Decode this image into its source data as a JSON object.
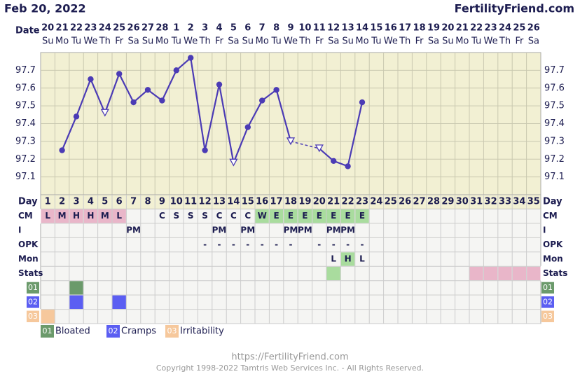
{
  "header": {
    "date": "Feb 20, 2022",
    "site": "FertilityFriend.com"
  },
  "chart_data": {
    "type": "line",
    "x_label": "Date",
    "dates": [
      20,
      21,
      22,
      23,
      24,
      25,
      26,
      27,
      28,
      1,
      2,
      3,
      4,
      5,
      6,
      7,
      8,
      9,
      10,
      11,
      12,
      13,
      14,
      15,
      16,
      17,
      18,
      19,
      20,
      21,
      22,
      23,
      24,
      25,
      26
    ],
    "weekdays": [
      "Su",
      "Mo",
      "Tu",
      "We",
      "Th",
      "Fr",
      "Sa",
      "Su",
      "Mo",
      "Tu",
      "We",
      "Th",
      "Fr",
      "Sa",
      "Su",
      "Mo",
      "Tu",
      "We",
      "Th",
      "Fr",
      "Sa",
      "Su",
      "Mo",
      "Tu",
      "We",
      "Th",
      "Fr",
      "Sa",
      "Su",
      "Mo",
      "Tu",
      "We",
      "Th",
      "Fr",
      "Sa"
    ],
    "ylim": [
      97.0,
      97.8
    ],
    "yticks": [
      97.1,
      97.2,
      97.3,
      97.4,
      97.5,
      97.6,
      97.7
    ],
    "grid": true,
    "color": "#4b3bb5",
    "gap_line": "dashed",
    "values": [
      null,
      97.25,
      97.44,
      97.65,
      97.46,
      97.68,
      97.52,
      97.59,
      97.53,
      97.7,
      97.77,
      97.25,
      97.62,
      97.18,
      97.38,
      97.53,
      97.59,
      97.3,
      null,
      97.26,
      97.19,
      97.16,
      97.52,
      null,
      null,
      null,
      null,
      null,
      null,
      null,
      null,
      null,
      null,
      null,
      null
    ],
    "point_styles": [
      null,
      "filled",
      "filled",
      "filled",
      "open",
      "filled",
      "filled",
      "filled",
      "filled",
      "filled",
      "filled",
      "filled",
      "filled",
      "open",
      "filled",
      "filled",
      "filled",
      "open",
      null,
      "open",
      "filled",
      "filled",
      "filled",
      null,
      null,
      null,
      null,
      null,
      null,
      null,
      null,
      null,
      null,
      null,
      null
    ]
  },
  "grid_rows": {
    "day_label": "Day",
    "days": [
      1,
      2,
      3,
      4,
      5,
      6,
      7,
      8,
      9,
      10,
      11,
      12,
      13,
      14,
      15,
      16,
      17,
      18,
      19,
      20,
      21,
      22,
      23,
      24,
      25,
      26,
      27,
      28,
      29,
      30,
      31,
      32,
      33,
      34,
      35
    ],
    "rows": [
      {
        "label": "CM",
        "cells": [
          "L",
          "M",
          "H",
          "H",
          "M",
          "L",
          null,
          null,
          "C",
          "S",
          "S",
          "S",
          "C",
          "C",
          "C",
          "W",
          "E",
          "E",
          "E",
          "E",
          "E",
          "E",
          "E",
          null,
          null,
          null,
          null,
          null,
          null,
          null,
          null,
          null,
          null,
          null,
          null
        ],
        "fills": [
          "#e9b6c9",
          "#e9b6c9",
          "#e9b6c9",
          "#e9b6c9",
          "#e9b6c9",
          "#e9b6c9",
          null,
          null,
          null,
          null,
          null,
          null,
          null,
          null,
          null,
          "#a9dc9e",
          "#a9dc9e",
          "#a9dc9e",
          "#a9dc9e",
          "#a9dc9e",
          "#a9dc9e",
          "#a9dc9e",
          "#a9dc9e",
          null,
          null,
          null,
          null,
          null,
          null,
          null,
          null,
          null,
          null,
          null,
          null
        ]
      },
      {
        "label": "I",
        "cells": [
          null,
          null,
          null,
          null,
          null,
          null,
          "PM",
          null,
          null,
          null,
          null,
          null,
          "PM",
          null,
          "PM",
          null,
          null,
          "PM",
          "PM",
          null,
          "PM",
          "PM",
          null,
          null,
          null,
          null,
          null,
          null,
          null,
          null,
          null,
          null,
          null,
          null,
          null
        ]
      },
      {
        "label": "OPK",
        "cells": [
          null,
          null,
          null,
          null,
          null,
          null,
          null,
          null,
          null,
          null,
          null,
          "-",
          "-",
          "-",
          "-",
          "-",
          "-",
          "-",
          null,
          "-",
          "-",
          "-",
          "-",
          null,
          null,
          null,
          null,
          null,
          null,
          null,
          null,
          null,
          null,
          null,
          null
        ]
      },
      {
        "label": "Mon",
        "cells": [
          null,
          null,
          null,
          null,
          null,
          null,
          null,
          null,
          null,
          null,
          null,
          null,
          null,
          null,
          null,
          null,
          null,
          null,
          null,
          null,
          "L",
          "H",
          "L",
          null,
          null,
          null,
          null,
          null,
          null,
          null,
          null,
          null,
          null,
          null,
          null
        ],
        "fills": [
          null,
          null,
          null,
          null,
          null,
          null,
          null,
          null,
          null,
          null,
          null,
          null,
          null,
          null,
          null,
          null,
          null,
          null,
          null,
          null,
          null,
          "#a9dc9e",
          null,
          null,
          null,
          null,
          null,
          null,
          null,
          null,
          null,
          null,
          null,
          null,
          null
        ]
      },
      {
        "label": "Stats",
        "cells": [
          null,
          null,
          null,
          null,
          null,
          null,
          null,
          null,
          null,
          null,
          null,
          null,
          null,
          null,
          null,
          null,
          null,
          null,
          null,
          null,
          null,
          null,
          null,
          null,
          null,
          null,
          null,
          null,
          null,
          null,
          null,
          null,
          null,
          null,
          null
        ],
        "fills": [
          null,
          null,
          null,
          null,
          null,
          null,
          null,
          null,
          null,
          null,
          null,
          null,
          null,
          null,
          null,
          null,
          null,
          null,
          null,
          null,
          "#a9dc9e",
          null,
          null,
          null,
          null,
          null,
          null,
          null,
          null,
          null,
          "#e9b6c9",
          "#e9b6c9",
          "#e9b6c9",
          "#e9b6c9",
          "#e9b6c9"
        ]
      }
    ]
  },
  "symptoms": [
    {
      "code": "01",
      "name": "Bloated",
      "color": "#6b9a6b",
      "days": [
        3
      ]
    },
    {
      "code": "02",
      "name": "Cramps",
      "color": "#5b5ef2",
      "days": [
        3,
        6
      ]
    },
    {
      "code": "03",
      "name": "Irritability",
      "color": "#f6c89c",
      "days": [
        1
      ]
    }
  ],
  "footer": {
    "url": "https://FertilityFriend.com",
    "copyright": "Copyright 1998-2022 Tamtris Web Services Inc. - All Rights Reserved."
  }
}
